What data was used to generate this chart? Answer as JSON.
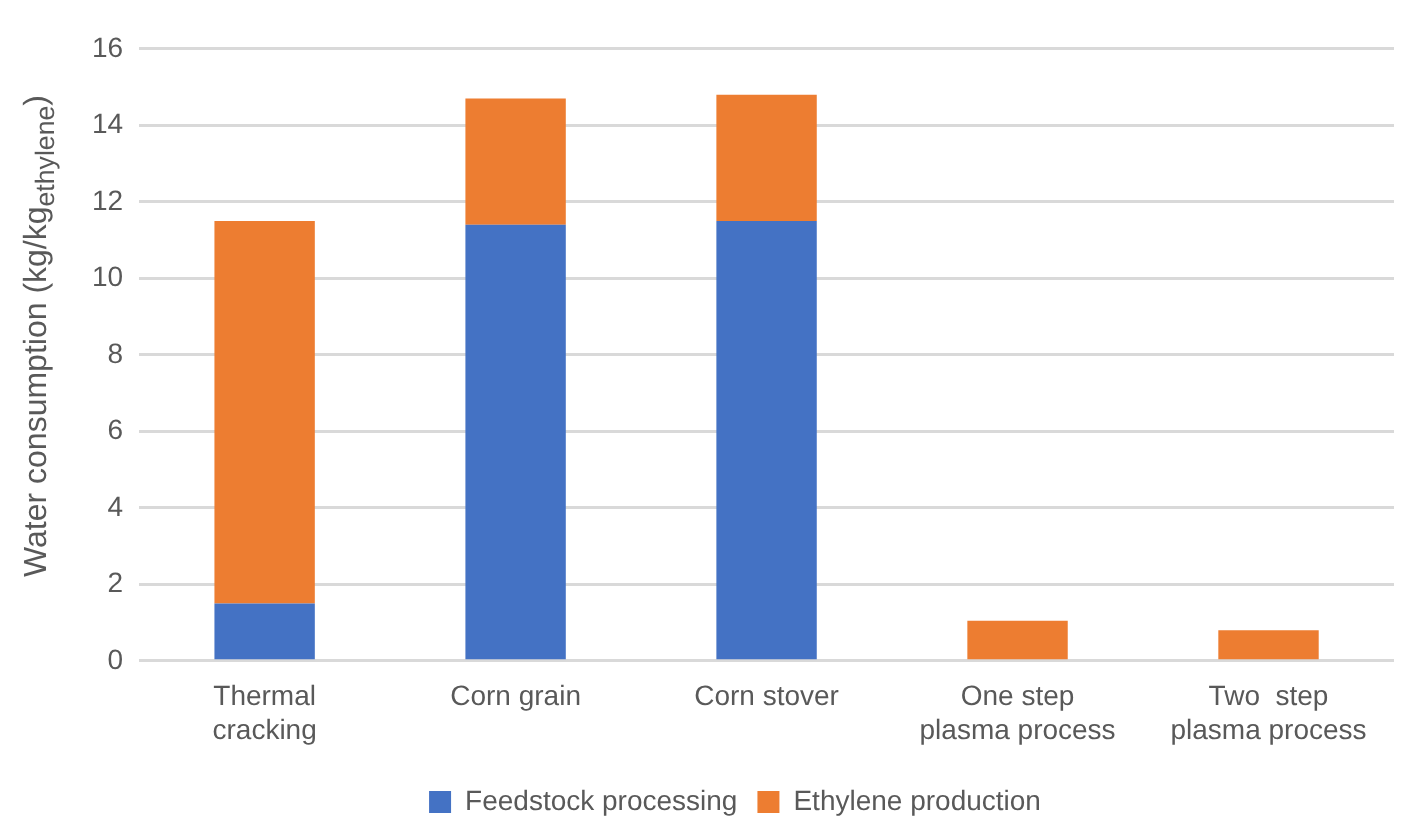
{
  "chart_data": {
    "type": "bar",
    "stacked": true,
    "ylabel": "Water consumption  (kg/kg$_{ethylene}$)",
    "categories": [
      "Thermal\ncracking",
      "Corn grain",
      "Corn stover",
      "One step\nplasma process",
      "Two  step\nplasma process"
    ],
    "series": [
      {
        "name": "Feedstock processing",
        "color": "#4472c4",
        "values": [
          1.5,
          11.4,
          11.5,
          0,
          0
        ]
      },
      {
        "name": "Ethylene production",
        "color": "#ed7d31",
        "values": [
          10.0,
          3.3,
          3.3,
          1.05,
          0.8
        ]
      }
    ],
    "ylim": [
      0,
      16
    ],
    "yticks": [
      0,
      2,
      4,
      6,
      8,
      10,
      12,
      14,
      16
    ],
    "grid": "y",
    "legend": "bottom"
  }
}
